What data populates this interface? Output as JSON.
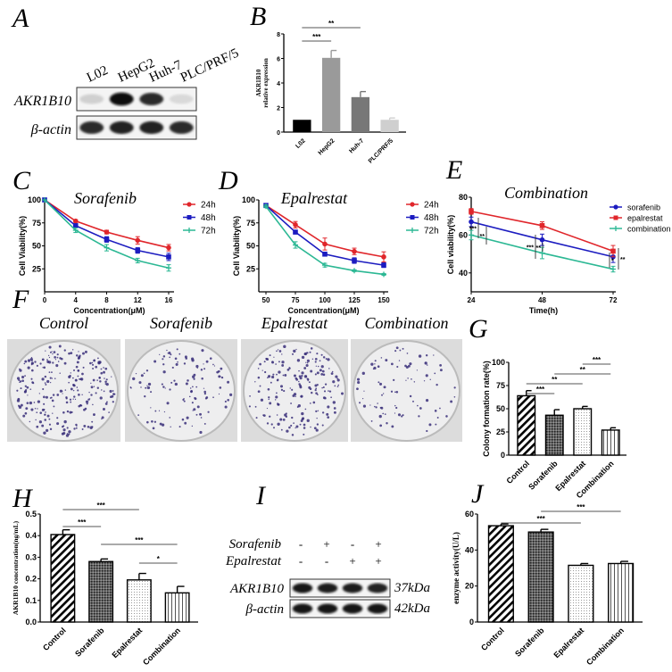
{
  "panels": {
    "A": {
      "label": "A",
      "lanes": [
        "L02",
        "HepG2",
        "Huh-7",
        "PLC/PRF/5"
      ],
      "rows": [
        {
          "name": "AKR1B10",
          "band_intensity": [
            0.12,
            1.0,
            0.85,
            0.08
          ]
        },
        {
          "name": "β-actin",
          "band_intensity": [
            0.85,
            0.9,
            0.9,
            0.85
          ]
        }
      ]
    },
    "B": {
      "label": "B"
    },
    "C": {
      "label": "C"
    },
    "D": {
      "label": "D"
    },
    "E": {
      "label": "E"
    },
    "F": {
      "label": "F",
      "dishes": [
        "Control",
        "Sorafenib",
        "Epalrestat",
        "Combination"
      ],
      "colony_color": "#3a2f7a"
    },
    "G": {
      "label": "G"
    },
    "H": {
      "label": "H"
    },
    "I": {
      "label": "I",
      "treatments": [
        {
          "name": "Sorafenib",
          "signs": [
            "-",
            "+",
            "-",
            "+"
          ]
        },
        {
          "name": "Epalrestat",
          "signs": [
            "-",
            "-",
            "+",
            "+"
          ]
        }
      ],
      "rows": [
        {
          "name": "AKR1B10",
          "size": "37kDa",
          "band_intensity": [
            0.95,
            0.92,
            0.92,
            0.9
          ]
        },
        {
          "name": "β-actin",
          "size": "42kDa",
          "band_intensity": [
            0.95,
            0.95,
            0.95,
            0.95
          ]
        }
      ]
    },
    "J": {
      "label": "J"
    }
  },
  "chart_data": [
    {
      "id": "B",
      "type": "bar",
      "title": "",
      "ylabel": "AKR1B10 relative expression",
      "ylabel_lines": [
        "AKR1B10",
        "relative expression"
      ],
      "xlabel": "",
      "categories": [
        "L02",
        "HepG2",
        "Huh-7",
        "PLC/PRF/5"
      ],
      "values": [
        1.0,
        6.05,
        2.85,
        1.0
      ],
      "errors": [
        0,
        0.6,
        0.45,
        0.15
      ],
      "colors": [
        "#000000",
        "#9a9a9a",
        "#777777",
        "#cfcfcf"
      ],
      "ylim": [
        0,
        8
      ],
      "yticks": [
        0,
        2,
        4,
        6,
        8
      ],
      "significance": [
        {
          "from": 0,
          "to": 1,
          "label": "***"
        },
        {
          "from": 0,
          "to": 2,
          "label": "**"
        }
      ]
    },
    {
      "id": "C",
      "type": "line",
      "title": "Sorafenib",
      "xlabel": "Concentration(μM)",
      "ylabel": "Cell Viability(%)",
      "x": [
        0,
        4,
        8,
        12,
        16
      ],
      "xticks": [
        0,
        4,
        8,
        12,
        16
      ],
      "xlim": [
        0,
        17
      ],
      "ylim": [
        0,
        100
      ],
      "yticks": [
        25,
        50,
        75,
        100
      ],
      "legend": "right",
      "series": [
        {
          "name": "24h",
          "color": "#e0262b",
          "marker": "circle",
          "values": [
            100,
            77,
            65,
            56,
            48
          ],
          "errors": [
            0,
            1.5,
            2,
            4,
            3.5
          ]
        },
        {
          "name": "48h",
          "color": "#1c1cc0",
          "marker": "square",
          "values": [
            100,
            72,
            57,
            45,
            38
          ],
          "errors": [
            0,
            1.5,
            3,
            3,
            4
          ]
        },
        {
          "name": "72h",
          "color": "#2cb894",
          "marker": "plus",
          "values": [
            100,
            67,
            48,
            34,
            26
          ],
          "errors": [
            0,
            2.5,
            3.5,
            2.5,
            3.5
          ]
        }
      ]
    },
    {
      "id": "D",
      "type": "line",
      "title": "Epalrestat",
      "xlabel": "Concentration(μM)",
      "ylabel": "Cell Viability(%)",
      "x": [
        50,
        75,
        100,
        125,
        150
      ],
      "xticks": [
        50,
        75,
        100,
        125,
        150
      ],
      "xlim": [
        47,
        153
      ],
      "ylim": [
        0,
        100
      ],
      "yticks": [
        25,
        50,
        75,
        100
      ],
      "legend": "right",
      "series": [
        {
          "name": "24h",
          "color": "#e0262b",
          "marker": "circle",
          "values": [
            94,
            73,
            52,
            44,
            38
          ],
          "errors": [
            1.5,
            3.5,
            6.5,
            3.5,
            5.5
          ]
        },
        {
          "name": "48h",
          "color": "#1c1cc0",
          "marker": "square",
          "values": [
            94,
            65,
            41,
            34,
            29
          ],
          "errors": [
            1.5,
            2,
            1.5,
            3,
            2.5
          ]
        },
        {
          "name": "72h",
          "color": "#2cb894",
          "marker": "plus",
          "values": [
            93,
            51,
            29,
            23,
            19
          ],
          "errors": [
            1.5,
            3.5,
            2,
            1,
            1
          ]
        }
      ]
    },
    {
      "id": "E",
      "type": "line",
      "title": "Combination",
      "xlabel": "Time(h)",
      "ylabel": "Cell viability(%)",
      "x": [
        24,
        48,
        72
      ],
      "xticks": [
        24,
        48,
        72
      ],
      "xlim": [
        11,
        80
      ],
      "ylim": [
        30,
        80
      ],
      "yticks": [
        40,
        60,
        80
      ],
      "legend": "right",
      "series": [
        {
          "name": "sorafenib",
          "color": "#1c1cc0",
          "marker": "circle",
          "values": [
            67,
            57.5,
            48.5
          ],
          "errors": [
            2.5,
            3,
            3
          ]
        },
        {
          "name": "epalrestat",
          "color": "#e0262b",
          "marker": "square",
          "values": [
            72.5,
            65,
            51.5
          ],
          "errors": [
            1.5,
            2,
            3
          ]
        },
        {
          "name": "combination",
          "color": "#2cb894",
          "marker": "plus",
          "values": [
            60,
            50.5,
            42
          ],
          "errors": [
            2.5,
            3,
            1.5
          ]
        }
      ],
      "significance": [
        {
          "x": 24,
          "label": "***"
        },
        {
          "x": 24,
          "label": "**"
        },
        {
          "x": 48,
          "label": "***"
        },
        {
          "x": 48,
          "label": "**"
        },
        {
          "x": 72,
          "label": "*"
        },
        {
          "x": 72,
          "label": "**"
        }
      ]
    },
    {
      "id": "G",
      "type": "bar",
      "title": "",
      "ylabel": "Colony formation rate(%)",
      "ylabel_lines": [
        "Colony formation rate(%)"
      ],
      "xlabel": "",
      "categories": [
        "Control",
        "Sorafenib",
        "Epalrestat",
        "Combination"
      ],
      "values": [
        64,
        43,
        50,
        27
      ],
      "errors": [
        5.5,
        6,
        2.5,
        2.5
      ],
      "patterns": [
        "diagonal",
        "crosshatch",
        "dots",
        "vertical"
      ],
      "ylim": [
        0,
        100
      ],
      "yticks": [
        0,
        25,
        50,
        75,
        100
      ],
      "significance": [
        {
          "from": 0,
          "to": 1,
          "label": "***"
        },
        {
          "from": 0,
          "to": 2,
          "label": "**"
        },
        {
          "from": 1,
          "to": 3,
          "label": "**"
        },
        {
          "from": 2,
          "to": 3,
          "label": "***"
        }
      ]
    },
    {
      "id": "H",
      "type": "bar",
      "title": "",
      "ylabel": "AKR1B10 concentration(ng/mL)",
      "ylabel_lines": [
        "AKR1B10 concentration(ng/mL)"
      ],
      "xlabel": "",
      "categories": [
        "Control",
        "Sorafenib",
        "Epalrestat",
        "Combination"
      ],
      "values": [
        0.405,
        0.28,
        0.195,
        0.135
      ],
      "errors": [
        0.022,
        0.012,
        0.03,
        0.03
      ],
      "patterns": [
        "diagonal",
        "crosshatch",
        "dots",
        "vertical"
      ],
      "ylim": [
        0,
        0.5
      ],
      "yticks": [
        0.0,
        0.1,
        0.2,
        0.3,
        0.4,
        0.5
      ],
      "ytick_decimals": 1,
      "significance": [
        {
          "from": 0,
          "to": 1,
          "label": "***"
        },
        {
          "from": 0,
          "to": 2,
          "label": "***"
        },
        {
          "from": 1,
          "to": 3,
          "label": "***"
        },
        {
          "from": 2,
          "to": 3,
          "label": "*"
        }
      ]
    },
    {
      "id": "J",
      "type": "bar",
      "title": "",
      "ylabel": "enzyme activity(U/L)",
      "ylabel_lines": [
        "enzyme activity(U/L)"
      ],
      "xlabel": "",
      "categories": [
        "Control",
        "Sorafenib",
        "Epalrestat",
        "Combination"
      ],
      "values": [
        53.5,
        50,
        31.5,
        32.5
      ],
      "errors": [
        1,
        1.5,
        1,
        1.2
      ],
      "patterns": [
        "diagonal",
        "crosshatch",
        "dots",
        "vertical"
      ],
      "ylim": [
        0,
        60
      ],
      "yticks": [
        0,
        20,
        40,
        60
      ],
      "significance": [
        {
          "from": 0,
          "to": 2,
          "label": "***"
        },
        {
          "from": 1,
          "to": 3,
          "label": "***"
        }
      ]
    }
  ]
}
